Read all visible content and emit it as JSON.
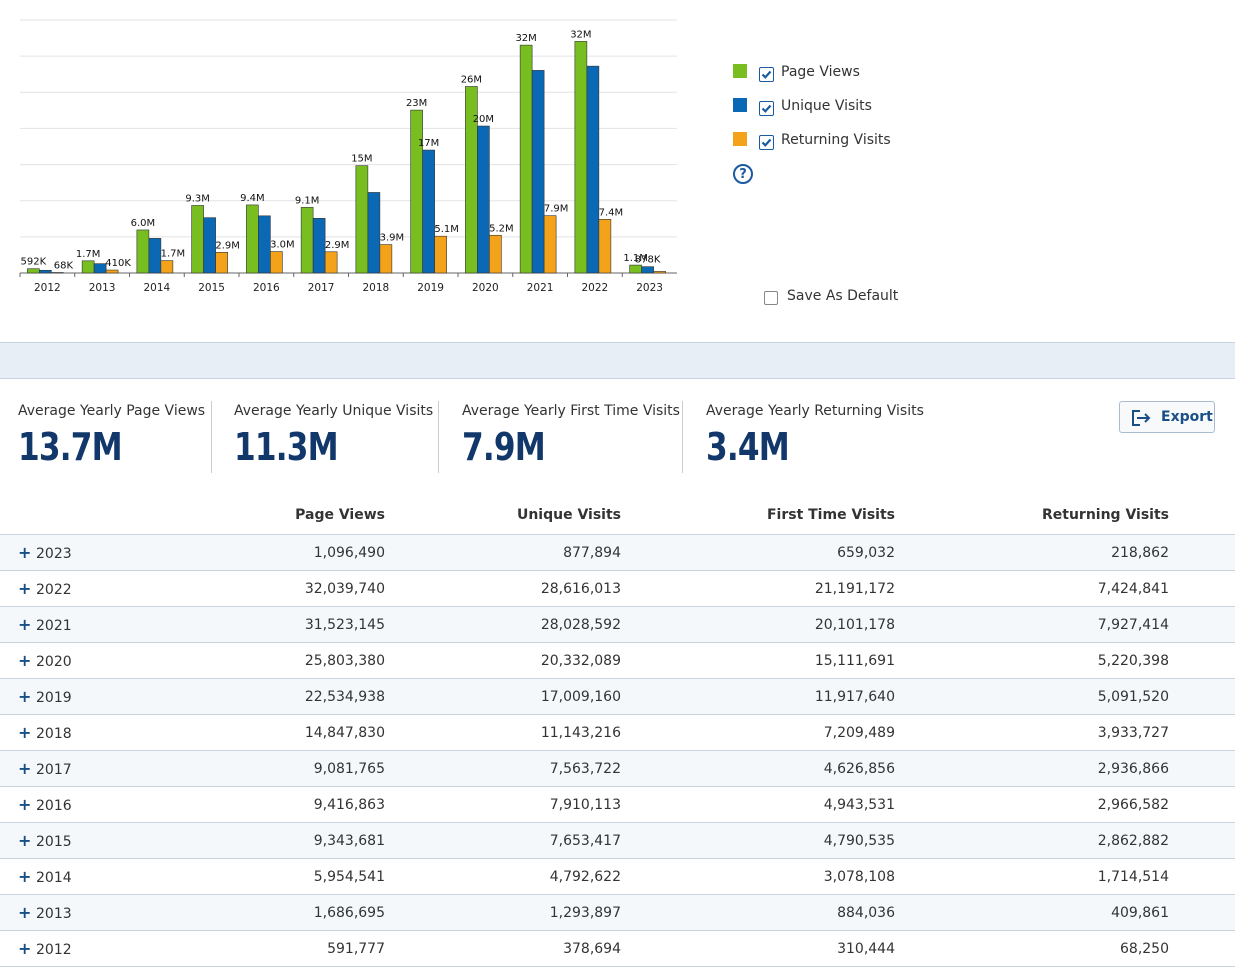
{
  "chart_data": {
    "type": "bar",
    "categories": [
      "2012",
      "2013",
      "2014",
      "2015",
      "2016",
      "2017",
      "2018",
      "2019",
      "2020",
      "2021",
      "2022",
      "2023"
    ],
    "series": [
      {
        "name": "Page Views",
        "color": "#78be20",
        "values": [
          591777,
          1686695,
          5954541,
          9343681,
          9416863,
          9081765,
          14847830,
          22534938,
          25803380,
          31523145,
          32039740,
          1096490
        ],
        "labels": [
          "592K",
          "1.7M",
          "6.0M",
          "9.3M",
          "9.4M",
          "9.1M",
          "15M",
          "23M",
          "26M",
          "32M",
          "32M",
          "1.1M"
        ]
      },
      {
        "name": "Unique Visits",
        "color": "#0a68b4",
        "values": [
          378694,
          1293897,
          4792622,
          7653417,
          7910113,
          7563722,
          11143216,
          17009160,
          20332089,
          28028592,
          28616013,
          877894
        ],
        "labels": [
          "",
          "",
          "",
          "",
          "",
          "",
          "",
          "17M",
          "20M",
          "",
          "",
          "878K"
        ]
      },
      {
        "name": "Returning Visits",
        "color": "#f5a21b",
        "values": [
          68250,
          409861,
          1714514,
          2862882,
          2966582,
          2936866,
          3933727,
          5091520,
          5220398,
          7927414,
          7424841,
          218862
        ],
        "labels": [
          "68K",
          "410K",
          "1.7M",
          "2.9M",
          "3.0M",
          "2.9M",
          "3.9M",
          "5.1M",
          "5.2M",
          "7.9M",
          "7.4M",
          ""
        ]
      }
    ],
    "ylim": [
      0,
      35000000
    ],
    "grid": true,
    "legend": "right"
  },
  "legend": {
    "items": [
      {
        "label": "Page Views",
        "color": "#78be20"
      },
      {
        "label": "Unique Visits",
        "color": "#0a68b4"
      },
      {
        "label": "Returning Visits",
        "color": "#f5a21b"
      }
    ]
  },
  "save_default_label": "Save As Default",
  "stats": {
    "page_views": {
      "label": "Average Yearly Page Views",
      "value": "13.7M"
    },
    "unique_visits": {
      "label": "Average Yearly Unique Visits",
      "value": "11.3M"
    },
    "first_time": {
      "label": "Average Yearly First Time Visits",
      "value": "7.9M"
    },
    "returning": {
      "label": "Average Yearly Returning Visits",
      "value": "3.4M"
    }
  },
  "export_label": "Export",
  "table": {
    "headers": {
      "page_views": "Page Views",
      "unique_visits": "Unique Visits",
      "first_time": "First Time Visits",
      "returning": "Returning Visits"
    },
    "rows": [
      {
        "year": "2023",
        "pv": "1,096,490",
        "uv": "877,894",
        "ft": "659,032",
        "rv": "218,862"
      },
      {
        "year": "2022",
        "pv": "32,039,740",
        "uv": "28,616,013",
        "ft": "21,191,172",
        "rv": "7,424,841"
      },
      {
        "year": "2021",
        "pv": "31,523,145",
        "uv": "28,028,592",
        "ft": "20,101,178",
        "rv": "7,927,414"
      },
      {
        "year": "2020",
        "pv": "25,803,380",
        "uv": "20,332,089",
        "ft": "15,111,691",
        "rv": "5,220,398"
      },
      {
        "year": "2019",
        "pv": "22,534,938",
        "uv": "17,009,160",
        "ft": "11,917,640",
        "rv": "5,091,520"
      },
      {
        "year": "2018",
        "pv": "14,847,830",
        "uv": "11,143,216",
        "ft": "7,209,489",
        "rv": "3,933,727"
      },
      {
        "year": "2017",
        "pv": "9,081,765",
        "uv": "7,563,722",
        "ft": "4,626,856",
        "rv": "2,936,866"
      },
      {
        "year": "2016",
        "pv": "9,416,863",
        "uv": "7,910,113",
        "ft": "4,943,531",
        "rv": "2,966,582"
      },
      {
        "year": "2015",
        "pv": "9,343,681",
        "uv": "7,653,417",
        "ft": "4,790,535",
        "rv": "2,862,882"
      },
      {
        "year": "2014",
        "pv": "5,954,541",
        "uv": "4,792,622",
        "ft": "3,078,108",
        "rv": "1,714,514"
      },
      {
        "year": "2013",
        "pv": "1,686,695",
        "uv": "1,293,897",
        "ft": "884,036",
        "rv": "409,861"
      },
      {
        "year": "2012",
        "pv": "591,777",
        "uv": "378,694",
        "ft": "310,444",
        "rv": "68,250"
      }
    ]
  }
}
